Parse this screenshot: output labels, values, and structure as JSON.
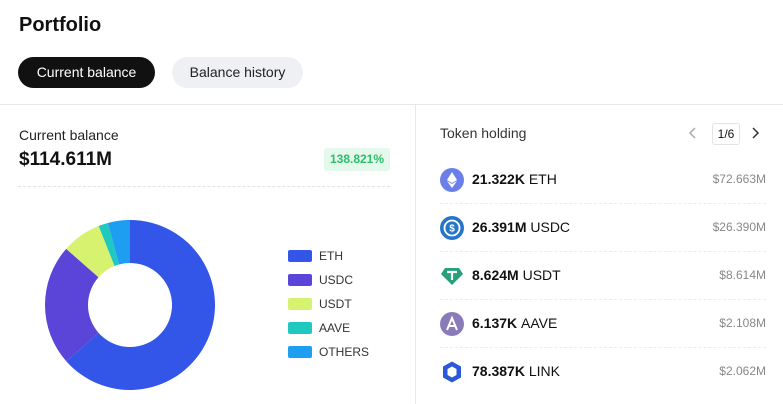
{
  "header": {
    "title": "Portfolio"
  },
  "tabs": [
    "Current balance",
    "Balance history"
  ],
  "balance": {
    "label": "Current balance",
    "amount": "$114.611M",
    "change": "138.821%"
  },
  "chart_data": {
    "type": "donut",
    "categories": [
      "ETH",
      "USDC",
      "USDT",
      "AAVE",
      "OTHERS"
    ],
    "values": [
      63.4,
      23.0,
      7.5,
      1.8,
      4.2
    ],
    "colors": [
      "#3355e8",
      "#5b45d9",
      "#d6f26e",
      "#1fc9c0",
      "#1d9ef0"
    ]
  },
  "holdings": {
    "title": "Token holding",
    "page": "1/6",
    "tokens": [
      {
        "amount": "21.322K",
        "symbol": "ETH",
        "value": "$72.663M"
      },
      {
        "amount": "26.391M",
        "symbol": "USDC",
        "value": "$26.390M"
      },
      {
        "amount": "8.624M",
        "symbol": "USDT",
        "value": "$8.614M"
      },
      {
        "amount": "6.137K",
        "symbol": "AAVE",
        "value": "$2.108M"
      },
      {
        "amount": "78.387K",
        "symbol": "LINK",
        "value": "$2.062M"
      }
    ]
  }
}
